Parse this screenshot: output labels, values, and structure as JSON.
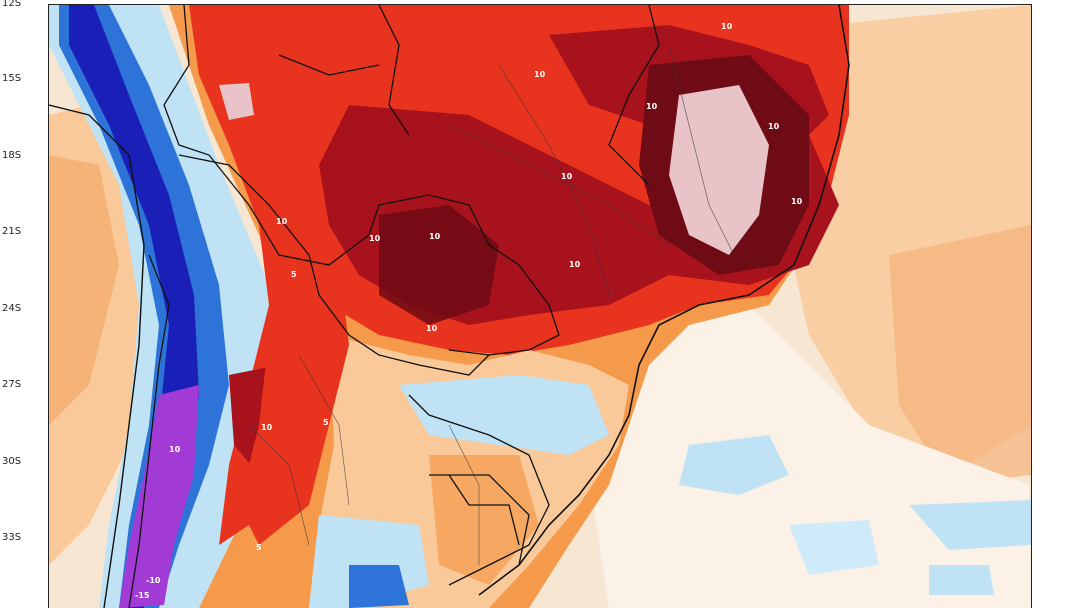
{
  "map": {
    "lat_labels": [
      "12S",
      "15S",
      "18S",
      "21S",
      "24S",
      "27S",
      "30S",
      "33S"
    ],
    "contour_labels": [
      "10",
      "10",
      "10",
      "10",
      "10",
      "10",
      "10",
      "10",
      "10",
      "10",
      "10",
      "10",
      "5",
      "5",
      "10",
      "-10",
      "-15",
      "5"
    ],
    "colors": {
      "ocean_pale": "#f7e6d2",
      "light_orange": "#f9c99a",
      "orange": "#f59a4a",
      "red": "#e8331e",
      "dark_red": "#a8121c",
      "maroon": "#6e0b14",
      "pale_pink": "#e8c4c8",
      "light_blue": "#bfe3f5",
      "blue": "#2e74d8",
      "dark_blue": "#1a1fb8",
      "purple": "#a23ad6",
      "border": "#111111"
    }
  }
}
